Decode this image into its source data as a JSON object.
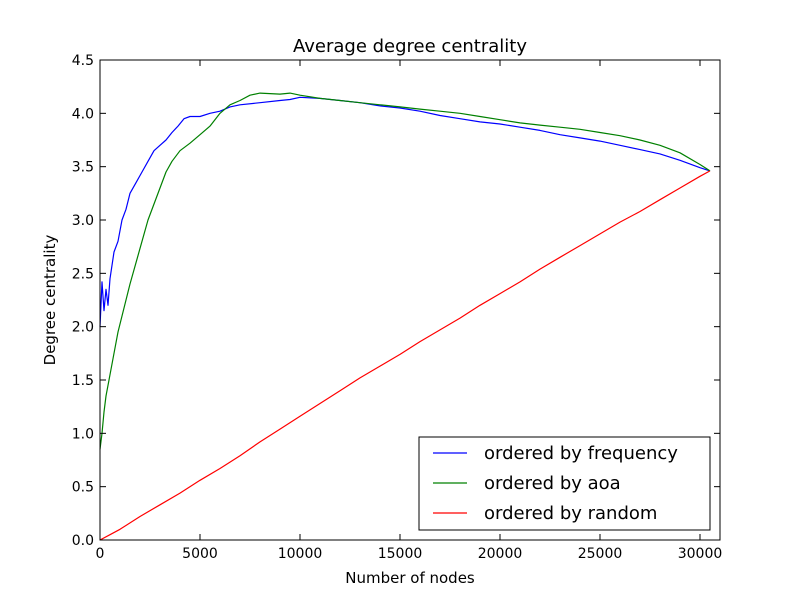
{
  "chart_data": {
    "type": "line",
    "title": "Average degree centrality",
    "xlabel": "Number of nodes",
    "ylabel": "Degree centrality",
    "xlim": [
      0,
      31000
    ],
    "ylim": [
      0,
      4.5
    ],
    "xticks": [
      0,
      5000,
      10000,
      15000,
      20000,
      25000,
      30000
    ],
    "xtick_labels": [
      "0",
      "5000",
      "10000",
      "15000",
      "20000",
      "25000",
      "30000"
    ],
    "yticks": [
      0,
      0.5,
      1.0,
      1.5,
      2.0,
      2.5,
      3.0,
      3.5,
      4.0,
      4.5
    ],
    "ytick_labels": [
      "0.0",
      "0.5",
      "1.0",
      "1.5",
      "2.0",
      "2.5",
      "3.0",
      "3.5",
      "4.0",
      "4.5"
    ],
    "grid": false,
    "legend_position": "lower-right",
    "series": [
      {
        "name": "ordered by frequency",
        "color": "#0000ff",
        "x": [
          0,
          100,
          200,
          300,
          400,
          500,
          700,
          900,
          1100,
          1300,
          1500,
          1800,
          2100,
          2400,
          2700,
          3000,
          3300,
          3600,
          3900,
          4200,
          4500,
          5000,
          5500,
          6000,
          6500,
          7000,
          8000,
          9000,
          9500,
          10000,
          11000,
          12000,
          13000,
          14000,
          15000,
          16000,
          17000,
          18000,
          19000,
          20000,
          21000,
          22000,
          23000,
          24000,
          25000,
          26000,
          27000,
          28000,
          29000,
          30000,
          30500
        ],
        "y": [
          2.0,
          2.42,
          2.15,
          2.35,
          2.2,
          2.45,
          2.7,
          2.8,
          3.0,
          3.1,
          3.25,
          3.35,
          3.45,
          3.55,
          3.65,
          3.7,
          3.75,
          3.82,
          3.88,
          3.95,
          3.97,
          3.97,
          4.0,
          4.02,
          4.06,
          4.08,
          4.1,
          4.12,
          4.13,
          4.15,
          4.14,
          4.12,
          4.1,
          4.07,
          4.05,
          4.02,
          3.98,
          3.95,
          3.92,
          3.9,
          3.87,
          3.84,
          3.8,
          3.77,
          3.74,
          3.7,
          3.66,
          3.62,
          3.56,
          3.49,
          3.46
        ]
      },
      {
        "name": "ordered by aoa",
        "color": "#008000",
        "x": [
          0,
          100,
          200,
          300,
          500,
          700,
          900,
          1100,
          1300,
          1500,
          1800,
          2100,
          2400,
          2700,
          3000,
          3300,
          3600,
          4000,
          4500,
          5000,
          5500,
          6000,
          6500,
          7000,
          7500,
          8000,
          9000,
          9500,
          10000,
          11000,
          12000,
          13000,
          14000,
          15000,
          16000,
          17000,
          18000,
          19000,
          20000,
          21000,
          22000,
          23000,
          24000,
          25000,
          26000,
          27000,
          28000,
          29000,
          30000,
          30500
        ],
        "y": [
          0.85,
          1.0,
          1.2,
          1.35,
          1.55,
          1.75,
          1.95,
          2.1,
          2.25,
          2.4,
          2.6,
          2.8,
          3.0,
          3.15,
          3.3,
          3.45,
          3.55,
          3.65,
          3.72,
          3.8,
          3.88,
          4.0,
          4.08,
          4.12,
          4.17,
          4.19,
          4.18,
          4.19,
          4.17,
          4.14,
          4.12,
          4.1,
          4.08,
          4.06,
          4.04,
          4.02,
          4.0,
          3.97,
          3.94,
          3.91,
          3.89,
          3.87,
          3.85,
          3.82,
          3.79,
          3.75,
          3.7,
          3.63,
          3.52,
          3.46
        ]
      },
      {
        "name": "ordered by random",
        "color": "#ff0000",
        "x": [
          0,
          500,
          1000,
          2000,
          3000,
          4000,
          5000,
          6000,
          7000,
          8000,
          9000,
          10000,
          11000,
          12000,
          13000,
          14000,
          15000,
          16000,
          17000,
          18000,
          19000,
          20000,
          21000,
          22000,
          23000,
          24000,
          25000,
          26000,
          27000,
          28000,
          29000,
          30000,
          30500
        ],
        "y": [
          0.0,
          0.05,
          0.1,
          0.22,
          0.33,
          0.44,
          0.56,
          0.67,
          0.79,
          0.92,
          1.04,
          1.16,
          1.28,
          1.4,
          1.52,
          1.63,
          1.74,
          1.86,
          1.97,
          2.08,
          2.2,
          2.31,
          2.42,
          2.54,
          2.65,
          2.76,
          2.87,
          2.98,
          3.08,
          3.19,
          3.3,
          3.41,
          3.46
        ]
      }
    ]
  }
}
